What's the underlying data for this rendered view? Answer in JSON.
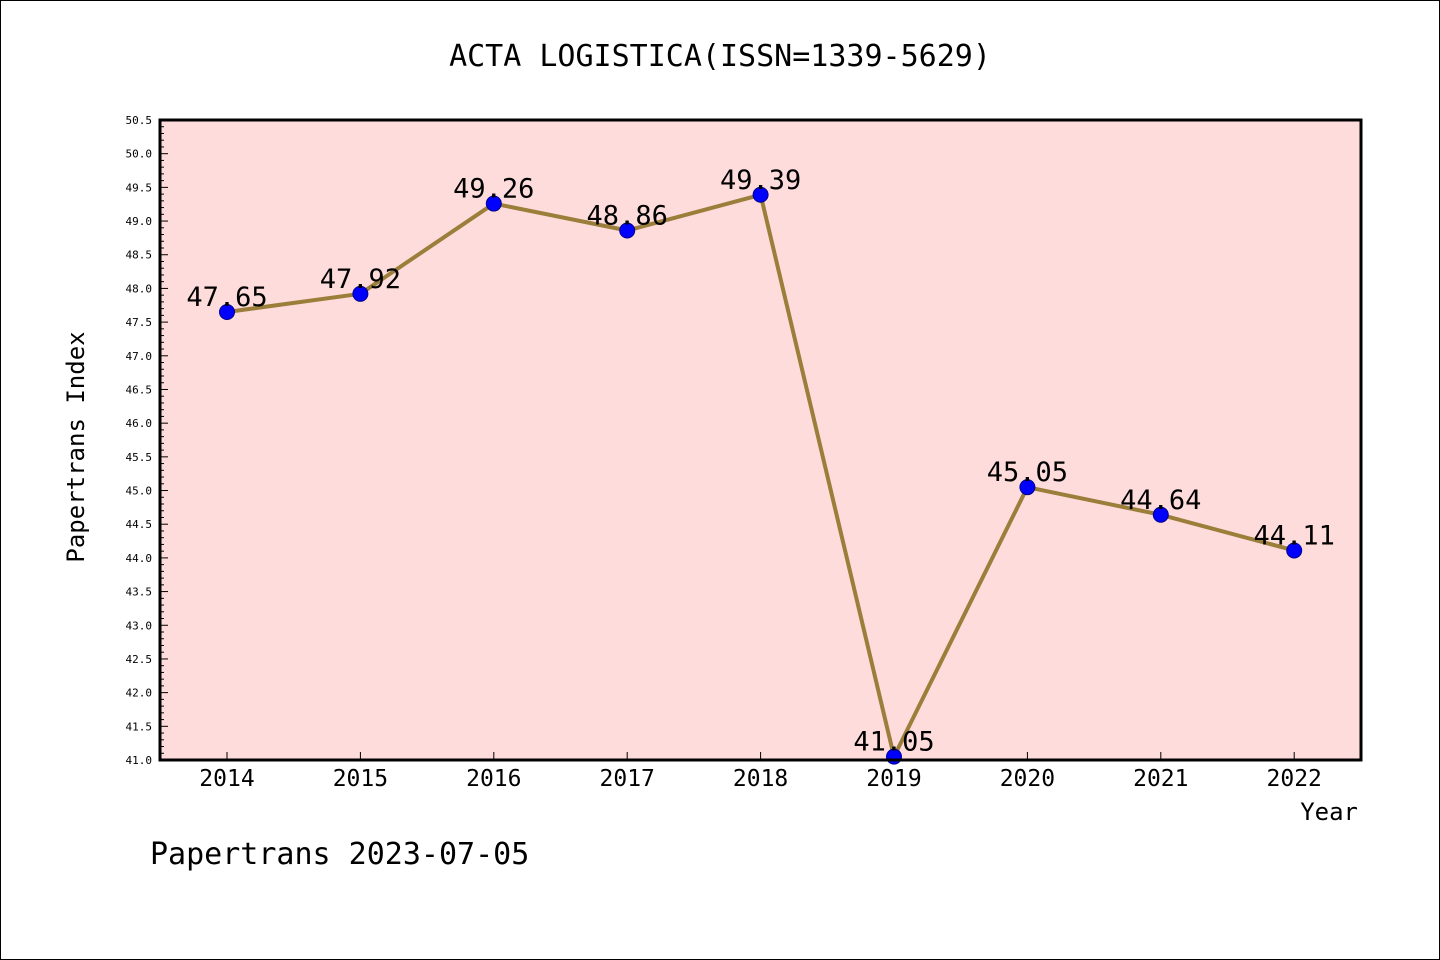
{
  "chart_data": {
    "type": "line",
    "title": "ACTA LOGISTICA(ISSN=1339-5629)",
    "xlabel": "Year",
    "ylabel": "Papertrans Index",
    "categories": [
      "2014",
      "2015",
      "2016",
      "2017",
      "2018",
      "2019",
      "2020",
      "2021",
      "2022"
    ],
    "series": [
      {
        "values": [
          47.65,
          47.92,
          49.26,
          48.86,
          49.39,
          41.05,
          45.05,
          44.64,
          44.11
        ]
      }
    ],
    "data_labels": [
      "47.65",
      "47.92",
      "49.26",
      "48.86",
      "49.39",
      "41.05",
      "45.05",
      "44.64",
      "44.11"
    ],
    "ylim": [
      41.0,
      50.5
    ],
    "y_ticks": [
      "41.0",
      "41.5",
      "42.0",
      "42.5",
      "43.0",
      "43.5",
      "44.0",
      "44.5",
      "45.0",
      "45.5",
      "46.0",
      "46.5",
      "47.0",
      "47.5",
      "48.0",
      "48.5",
      "49.0",
      "49.5",
      "50.0",
      "50.5"
    ],
    "grid": false,
    "legend": "none",
    "colors": {
      "plot_background": "#ffdcdc",
      "line": "#9a7e3a",
      "marker": "#0000ff",
      "marker_edge": "#00008a",
      "frame": "#000000"
    }
  },
  "footer": {
    "text": "Papertrans 2023-07-05"
  }
}
